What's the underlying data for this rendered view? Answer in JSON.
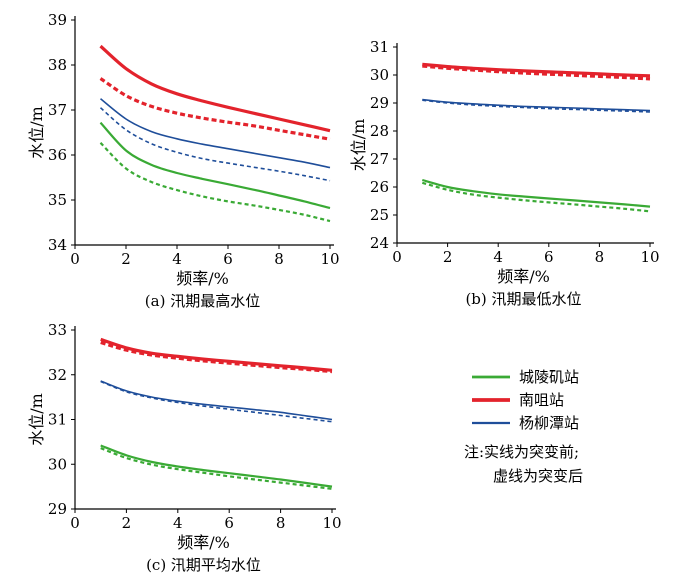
{
  "colors": {
    "green": "#3aaa35",
    "red": "#e3232c",
    "blue": "#1f4e9a"
  },
  "legend": {
    "items": [
      {
        "label": "城陵矶站",
        "color": "#3aaa35",
        "width": 2.2
      },
      {
        "label": "南咀站",
        "color": "#e3232c",
        "width": 3.2
      },
      {
        "label": "杨柳潭站",
        "color": "#1f4e9a",
        "width": 1.6
      }
    ],
    "note_line1": "注:实线为突变前;",
    "note_line2": "虚线为突变后"
  },
  "chart_data": [
    {
      "type": "line",
      "caption": "(a) 汛期最高水位",
      "xlabel": "频率/%",
      "ylabel": "水位/m",
      "xlim": [
        0,
        10
      ],
      "ylim": [
        34,
        39
      ],
      "xticks": [
        0,
        2,
        4,
        6,
        8,
        10
      ],
      "yticks": [
        34,
        35,
        36,
        37,
        38,
        39
      ],
      "x": [
        1,
        2,
        3,
        4,
        5,
        6,
        7,
        8,
        9,
        10
      ],
      "series": [
        {
          "name": "南咀站 突变前",
          "station": "南咀站",
          "style": "solid",
          "values": [
            38.42,
            37.92,
            37.58,
            37.36,
            37.2,
            37.06,
            36.93,
            36.8,
            36.67,
            36.54
          ]
        },
        {
          "name": "南咀站 突变后",
          "station": "南咀站",
          "style": "dashed",
          "values": [
            37.7,
            37.32,
            37.08,
            36.93,
            36.82,
            36.73,
            36.65,
            36.55,
            36.45,
            36.35
          ]
        },
        {
          "name": "杨柳潭站 突变前",
          "station": "杨柳潭站",
          "style": "solid",
          "values": [
            37.25,
            36.8,
            36.52,
            36.36,
            36.24,
            36.14,
            36.04,
            35.94,
            35.84,
            35.72
          ]
        },
        {
          "name": "杨柳潭站 突变后",
          "station": "杨柳潭站",
          "style": "dashed",
          "values": [
            37.05,
            36.56,
            36.25,
            36.06,
            35.92,
            35.82,
            35.73,
            35.64,
            35.54,
            35.43
          ]
        },
        {
          "name": "城陵矶站 突变前",
          "station": "城陵矶站",
          "style": "solid",
          "values": [
            36.72,
            36.1,
            35.78,
            35.6,
            35.47,
            35.35,
            35.23,
            35.1,
            34.97,
            34.82
          ]
        },
        {
          "name": "城陵矶站 突变后",
          "station": "城陵矶站",
          "style": "dashed",
          "values": [
            36.27,
            35.7,
            35.4,
            35.22,
            35.08,
            34.97,
            34.88,
            34.78,
            34.67,
            34.53
          ]
        }
      ]
    },
    {
      "type": "line",
      "caption": "(b) 汛期最低水位",
      "xlabel": "频率/%",
      "ylabel": "水位/m",
      "xlim": [
        0,
        10
      ],
      "ylim": [
        24,
        31
      ],
      "xticks": [
        0,
        2,
        4,
        6,
        8,
        10
      ],
      "yticks": [
        24,
        25,
        26,
        27,
        28,
        29,
        30,
        31
      ],
      "x": [
        1,
        2,
        3,
        4,
        5,
        6,
        7,
        8,
        9,
        10
      ],
      "series": [
        {
          "name": "南咀站 突变前",
          "station": "南咀站",
          "style": "solid",
          "values": [
            30.38,
            30.3,
            30.24,
            30.19,
            30.15,
            30.11,
            30.08,
            30.04,
            30.0,
            29.97
          ]
        },
        {
          "name": "南咀站 突变后",
          "station": "南咀站",
          "style": "dashed",
          "values": [
            30.32,
            30.24,
            30.18,
            30.12,
            30.07,
            30.03,
            29.99,
            29.95,
            29.91,
            29.86
          ]
        },
        {
          "name": "杨柳潭站 突变前",
          "station": "杨柳潭站",
          "style": "solid",
          "values": [
            29.12,
            29.03,
            28.97,
            28.92,
            28.88,
            28.85,
            28.82,
            28.79,
            28.76,
            28.73
          ]
        },
        {
          "name": "杨柳潭站 突变后",
          "station": "杨柳潭站",
          "style": "dashed",
          "values": [
            29.1,
            29.0,
            28.93,
            28.88,
            28.84,
            28.8,
            28.77,
            28.74,
            28.71,
            28.68
          ]
        },
        {
          "name": "城陵矶站 突变前",
          "station": "城陵矶站",
          "style": "solid",
          "values": [
            26.25,
            26.0,
            25.85,
            25.74,
            25.66,
            25.59,
            25.52,
            25.45,
            25.38,
            25.3
          ]
        },
        {
          "name": "城陵矶站 突变后",
          "station": "城陵矶站",
          "style": "dashed",
          "values": [
            26.15,
            25.9,
            25.73,
            25.62,
            25.53,
            25.45,
            25.38,
            25.3,
            25.22,
            25.13
          ]
        }
      ]
    },
    {
      "type": "line",
      "caption": "(c) 汛期平均水位",
      "xlabel": "频率/%",
      "ylabel": "水位/m",
      "xlim": [
        0,
        10
      ],
      "ylim": [
        29,
        33
      ],
      "xticks": [
        0,
        2,
        4,
        6,
        8,
        10
      ],
      "yticks": [
        29,
        30,
        31,
        32,
        33
      ],
      "x": [
        1,
        2,
        3,
        4,
        5,
        6,
        7,
        8,
        9,
        10
      ],
      "series": [
        {
          "name": "南咀站 突变前",
          "station": "南咀站",
          "style": "solid",
          "values": [
            32.79,
            32.6,
            32.48,
            32.41,
            32.35,
            32.3,
            32.25,
            32.2,
            32.15,
            32.1
          ]
        },
        {
          "name": "南咀站 突变后",
          "station": "南咀站",
          "style": "dashed",
          "values": [
            32.72,
            32.55,
            32.44,
            32.37,
            32.31,
            32.26,
            32.21,
            32.16,
            32.12,
            32.07
          ]
        },
        {
          "name": "杨柳潭站 突变前",
          "station": "杨柳潭站",
          "style": "solid",
          "values": [
            31.86,
            31.64,
            31.5,
            31.41,
            31.34,
            31.28,
            31.22,
            31.16,
            31.08,
            31.0
          ]
        },
        {
          "name": "杨柳潭站 突变后",
          "station": "杨柳潭站",
          "style": "dashed",
          "values": [
            31.85,
            31.62,
            31.48,
            31.38,
            31.3,
            31.23,
            31.16,
            31.09,
            31.02,
            30.95
          ]
        },
        {
          "name": "城陵矶站 突变前",
          "station": "城陵矶站",
          "style": "solid",
          "values": [
            30.42,
            30.2,
            30.05,
            29.95,
            29.87,
            29.8,
            29.73,
            29.66,
            29.58,
            29.5
          ]
        },
        {
          "name": "城陵矶站 突变后",
          "station": "城陵矶站",
          "style": "dashed",
          "values": [
            30.36,
            30.14,
            29.99,
            29.89,
            29.81,
            29.73,
            29.66,
            29.59,
            29.52,
            29.45
          ]
        }
      ]
    }
  ]
}
